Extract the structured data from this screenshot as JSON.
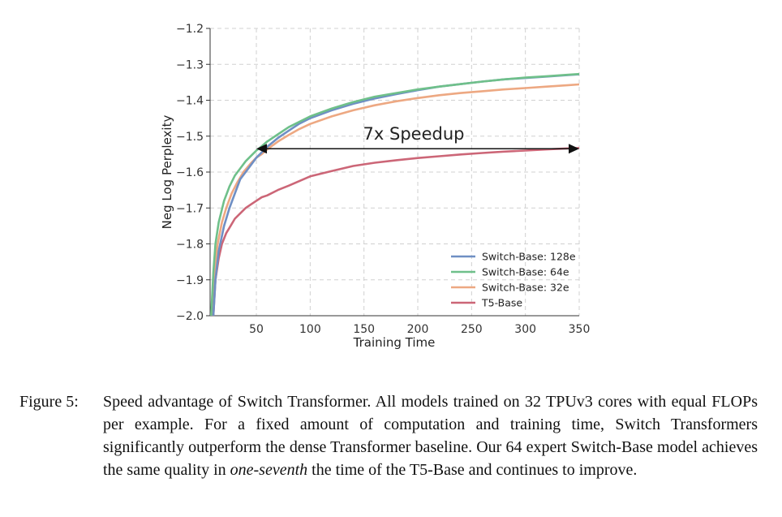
{
  "chart_data": {
    "type": "line",
    "xlabel": "Training Time",
    "ylabel": "Neg Log Perplexity",
    "xlim": [
      7,
      350
    ],
    "ylim": [
      -2.0,
      -1.2
    ],
    "xticks": [
      50,
      100,
      150,
      200,
      250,
      300,
      350
    ],
    "yticks": [
      -2.0,
      -1.9,
      -1.8,
      -1.7,
      -1.6,
      -1.5,
      -1.4,
      -1.3,
      -1.2
    ],
    "xtick_labels": [
      "50",
      "100",
      "150",
      "200",
      "250",
      "300",
      "350"
    ],
    "ytick_labels": [
      "−2.0",
      "−1.9",
      "−1.8",
      "−1.7",
      "−1.6",
      "−1.5",
      "−1.4",
      "−1.3",
      "−1.2"
    ],
    "grid": true,
    "legend_position": "lower-right",
    "series": [
      {
        "name": "Switch-Base: 128e",
        "color": "#6f8fc4",
        "x": [
          10,
          12,
          15,
          20,
          25,
          30,
          35,
          40,
          45,
          50,
          55,
          60,
          70,
          80,
          90,
          100,
          120,
          140,
          160,
          180,
          200,
          220,
          240,
          260,
          280,
          300,
          320,
          340,
          350
        ],
        "y": [
          -2.0,
          -1.9,
          -1.82,
          -1.75,
          -1.7,
          -1.66,
          -1.62,
          -1.6,
          -1.58,
          -1.56,
          -1.545,
          -1.53,
          -1.505,
          -1.485,
          -1.465,
          -1.45,
          -1.428,
          -1.41,
          -1.395,
          -1.383,
          -1.372,
          -1.362,
          -1.355,
          -1.348,
          -1.342,
          -1.338,
          -1.334,
          -1.33,
          -1.328
        ]
      },
      {
        "name": "Switch-Base: 64e",
        "color": "#6fc08a",
        "x": [
          8,
          10,
          12,
          15,
          20,
          25,
          30,
          35,
          40,
          45,
          50,
          55,
          60,
          70,
          80,
          90,
          100,
          120,
          140,
          160,
          180,
          200,
          220,
          240,
          260,
          280,
          300,
          320,
          340,
          350
        ],
        "y": [
          -2.0,
          -1.88,
          -1.8,
          -1.74,
          -1.68,
          -1.64,
          -1.61,
          -1.59,
          -1.57,
          -1.555,
          -1.54,
          -1.528,
          -1.515,
          -1.495,
          -1.475,
          -1.46,
          -1.445,
          -1.423,
          -1.405,
          -1.39,
          -1.38,
          -1.37,
          -1.362,
          -1.355,
          -1.348,
          -1.342,
          -1.337,
          -1.333,
          -1.329,
          -1.327
        ]
      },
      {
        "name": "Switch-Base: 32e",
        "color": "#eda882",
        "x": [
          9,
          11,
          14,
          18,
          22,
          27,
          32,
          38,
          45,
          50,
          55,
          60,
          70,
          80,
          90,
          100,
          120,
          140,
          160,
          180,
          200,
          220,
          240,
          260,
          280,
          300,
          320,
          340,
          350
        ],
        "y": [
          -2.0,
          -1.88,
          -1.8,
          -1.74,
          -1.7,
          -1.66,
          -1.63,
          -1.6,
          -1.575,
          -1.56,
          -1.55,
          -1.537,
          -1.515,
          -1.497,
          -1.48,
          -1.466,
          -1.445,
          -1.428,
          -1.414,
          -1.403,
          -1.394,
          -1.386,
          -1.38,
          -1.375,
          -1.37,
          -1.366,
          -1.362,
          -1.358,
          -1.356
        ]
      },
      {
        "name": "T5-Base",
        "color": "#cc6677",
        "x": [
          10,
          12,
          15,
          18,
          22,
          26,
          30,
          35,
          40,
          45,
          50,
          55,
          60,
          70,
          80,
          90,
          100,
          120,
          140,
          160,
          180,
          200,
          220,
          240,
          260,
          280,
          300,
          320,
          340,
          350
        ],
        "y": [
          -2.0,
          -1.9,
          -1.84,
          -1.8,
          -1.77,
          -1.75,
          -1.73,
          -1.715,
          -1.7,
          -1.69,
          -1.68,
          -1.67,
          -1.665,
          -1.65,
          -1.638,
          -1.625,
          -1.612,
          -1.597,
          -1.583,
          -1.574,
          -1.567,
          -1.561,
          -1.556,
          -1.551,
          -1.547,
          -1.543,
          -1.54,
          -1.537,
          -1.534,
          -1.533
        ]
      }
    ],
    "annotation": {
      "text": "7x Speedup",
      "arrow_y": -1.535,
      "arrow_x_start": 50,
      "arrow_x_end": 350
    }
  },
  "caption": {
    "label": "Figure 5:",
    "text_before": "Speed advantage of Switch Transformer. All models trained on 32 TPUv3 cores with equal FLOPs per example. For a fixed amount of computation and training time, Switch Transformers significantly outperform the dense Transformer baseline. Our 64 expert Switch-Base model achieves the same quality in ",
    "emphasis": "one-seventh",
    "text_after": " the time of the T5-Base and continues to improve."
  }
}
